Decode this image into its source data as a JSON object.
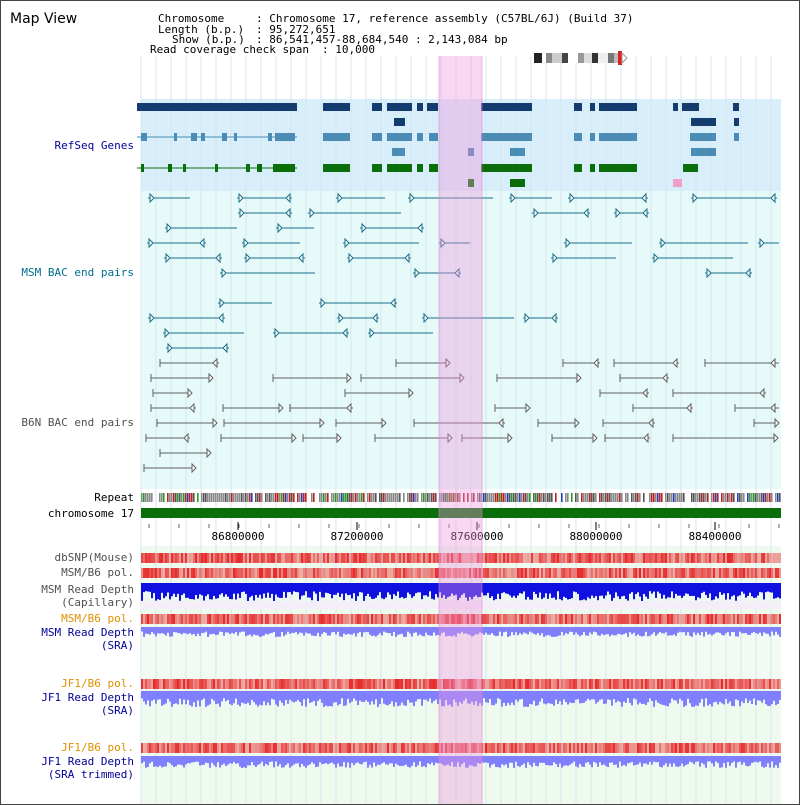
{
  "window_title": "Map View",
  "header": {
    "chromosome_key": "Chromosome",
    "chromosome_val": ": Chromosome 17, reference assembly (C57BL/6J) (Build 37)",
    "length_key": "Length (b.p.)",
    "length_val": ": 95,272,651",
    "show_key": "Show (b.p.)",
    "show_val": ": 86,541,457-88,684,540 : 2,143,084 bp",
    "coverage_key": "Read coverage check span",
    "coverage_val": ": 10,000"
  },
  "tracks": {
    "refseq": "RefSeq Genes",
    "msm_bac": "MSM BAC end pairs",
    "b6n_bac": "B6N BAC end pairs",
    "repeat": "Repeat",
    "chromosome": "chromosome 17",
    "dbsnp": "dbSNP(Mouse)",
    "msm_b6_pol_1": "MSM/B6 pol.",
    "msm_depth_cap_1": "MSM Read Depth",
    "msm_depth_cap_2": "(Capillary)",
    "msm_b6_pol_2": "MSM/B6 pol.",
    "msm_depth_sra_1": "MSM Read Depth",
    "msm_depth_sra_2": "(SRA)",
    "jf1_b6_pol_1": "JF1/B6 pol.",
    "jf1_depth_sra_1": "JF1 Read Depth",
    "jf1_depth_sra_2": "(SRA)",
    "jf1_b6_pol_2": "JF1/B6 pol.",
    "jf1_depth_trim_1": "JF1 Read Depth",
    "jf1_depth_trim_2": "(SRA trimmed)"
  },
  "axis": {
    "ticks": [
      "86800000",
      "87200000",
      "87600000",
      "88000000",
      "88400000"
    ]
  },
  "colors": {
    "refseq_bg": "#d8eefa",
    "bac_bg": "#e6fafa",
    "highlight": "#f8d8f0",
    "gene_dark": "#143c6e",
    "gene_light": "#4a8cb4",
    "gene_green": "#0a6e0a",
    "msm_bac_line": "#1a6e8a",
    "b6n_bac_line": "#606060",
    "chromosome_bar": "#0a6e0a",
    "depth_blue": "#1010e0",
    "depth_light_blue": "#8080ff",
    "pol_red": "#e03030",
    "label_blue": "#000099",
    "label_teal": "#006e8a",
    "label_gray": "#505050",
    "label_orange": "#e09000"
  }
}
